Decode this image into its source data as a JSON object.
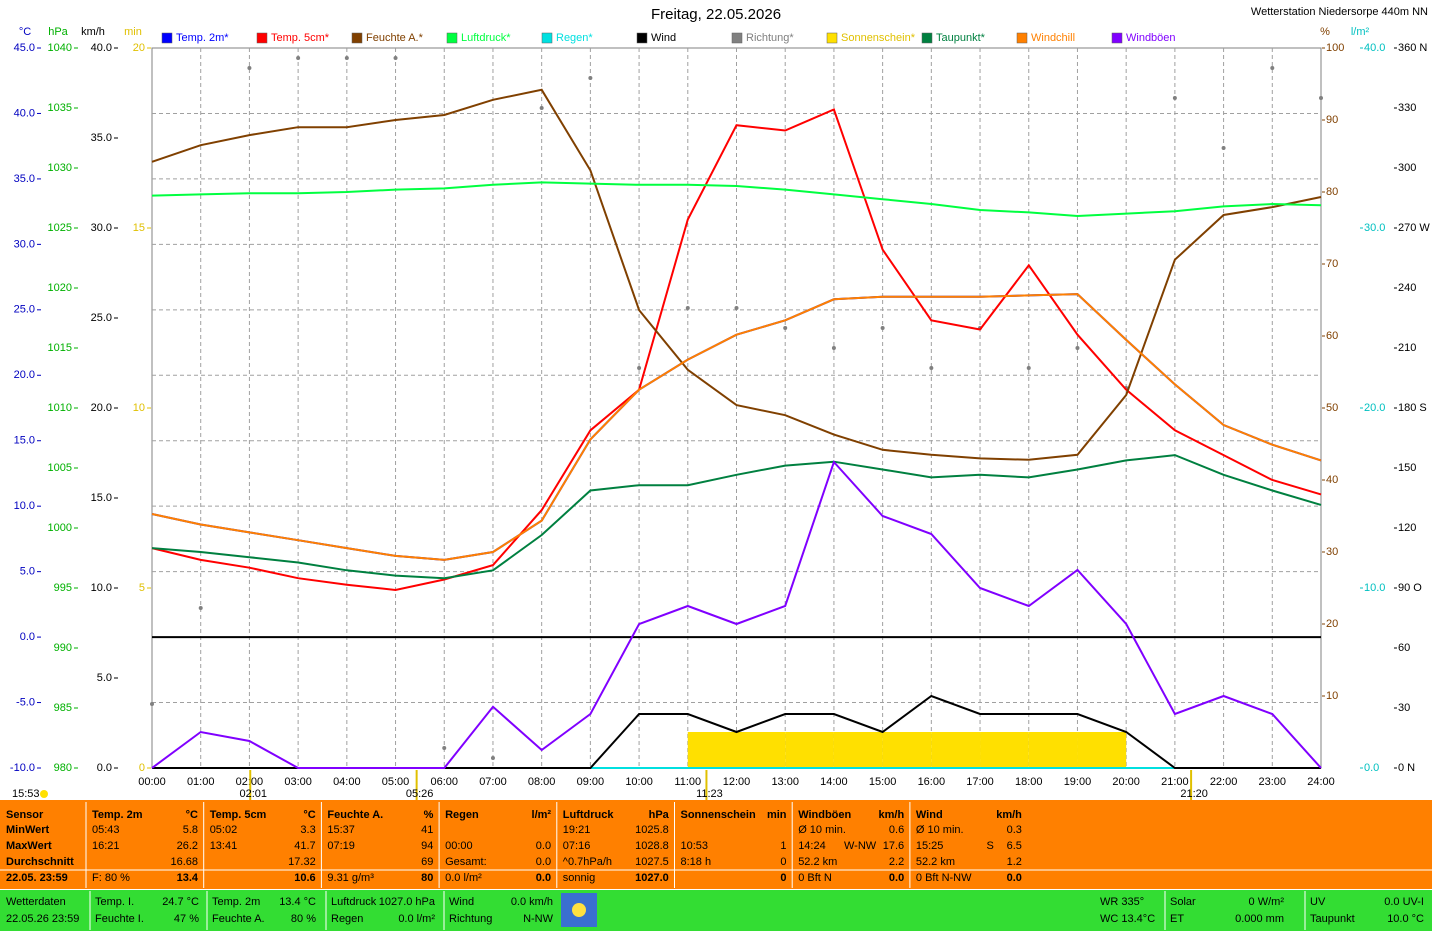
{
  "chart_data": {
    "type": "line",
    "title": "Freitag, 22.05.2026",
    "subtitle": "Wetterstation Niedersorpe 440m NN",
    "x": [
      0,
      1,
      2,
      3,
      4,
      5,
      6,
      7,
      8,
      9,
      10,
      11,
      12,
      13,
      14,
      15,
      16,
      17,
      18,
      19,
      20,
      21,
      22,
      23,
      24
    ],
    "xlim": [
      0,
      24
    ],
    "xticks": [
      {
        "value": 0,
        "label": "00:00"
      },
      {
        "value": 1,
        "label": "01:00"
      },
      {
        "value": 2,
        "label": "02:00"
      },
      {
        "value": 3,
        "label": "03:00"
      },
      {
        "value": 4,
        "label": "04:00"
      },
      {
        "value": 5,
        "label": "05:00"
      },
      {
        "value": 6,
        "label": "06:00"
      },
      {
        "value": 7,
        "label": "07:00"
      },
      {
        "value": 8,
        "label": "08:00"
      },
      {
        "value": 9,
        "label": "09:00"
      },
      {
        "value": 10,
        "label": "10:00"
      },
      {
        "value": 11,
        "label": "11:00"
      },
      {
        "value": 12,
        "label": "12:00"
      },
      {
        "value": 13,
        "label": "13:00"
      },
      {
        "value": 14,
        "label": "14:00"
      },
      {
        "value": 15,
        "label": "15:00"
      },
      {
        "value": 16,
        "label": "16:00"
      },
      {
        "value": 17,
        "label": "17:00"
      },
      {
        "value": 18,
        "label": "18:00"
      },
      {
        "value": 19,
        "label": "19:00"
      },
      {
        "value": 20,
        "label": "20:00"
      },
      {
        "value": 21,
        "label": "21:00"
      },
      {
        "value": 22,
        "label": "22:00"
      },
      {
        "value": 23,
        "label": "23:00"
      },
      {
        "value": 24,
        "label": "24:00"
      }
    ],
    "y_axes": {
      "temp": {
        "unit": "°C",
        "color": "#0000c0",
        "ylim": [
          -10,
          45
        ],
        "grid": true,
        "zero_line": true,
        "yticks": [
          {
            "value": -10,
            "label": "-10.0"
          },
          {
            "value": -5,
            "label": "-5.0"
          },
          {
            "value": 0,
            "label": "0.0"
          },
          {
            "value": 5,
            "label": "5.0"
          },
          {
            "value": 10,
            "label": "10.0"
          },
          {
            "value": 15,
            "label": "15.0"
          },
          {
            "value": 20,
            "label": "20.0"
          },
          {
            "value": 25,
            "label": "25.0"
          },
          {
            "value": 30,
            "label": "30.0"
          },
          {
            "value": 35,
            "label": "35.0"
          },
          {
            "value": 40,
            "label": "40.0"
          },
          {
            "value": 45,
            "label": "45.0"
          }
        ]
      },
      "pressure": {
        "unit": "hPa",
        "color": "#00b000",
        "ylim": [
          980,
          1040
        ],
        "yticks": [
          980,
          985,
          990,
          995,
          1000,
          1005,
          1010,
          1015,
          1020,
          1025,
          1030,
          1035,
          1040
        ]
      },
      "wind": {
        "unit": "km/h",
        "color": "#000000",
        "ylim": [
          0,
          40
        ],
        "yticks": [
          {
            "value": 0,
            "label": "0.0"
          },
          {
            "value": 5,
            "label": "5.0"
          },
          {
            "value": 10,
            "label": "10.0"
          },
          {
            "value": 15,
            "label": "15.0"
          },
          {
            "value": 20,
            "label": "20.0"
          },
          {
            "value": 25,
            "label": "25.0"
          },
          {
            "value": 30,
            "label": "30.0"
          },
          {
            "value": 35,
            "label": "35.0"
          },
          {
            "value": 40,
            "label": "40.0"
          }
        ]
      },
      "sun": {
        "unit": "min",
        "color": "#e0c000",
        "ylim": [
          0,
          20
        ],
        "yticks": [
          0,
          5,
          10,
          15,
          20
        ]
      },
      "humidity": {
        "unit": "%",
        "color": "#804000",
        "ylim": [
          0,
          100
        ],
        "yticks": [
          10,
          20,
          30,
          40,
          50,
          60,
          70,
          80,
          90,
          100
        ]
      },
      "rain": {
        "unit": "l/m²",
        "color": "#00c0c0",
        "ylim": [
          0,
          40
        ],
        "yticks": [
          {
            "value": 0,
            "label": "0.0"
          },
          {
            "value": 10,
            "label": "10.0"
          },
          {
            "value": 20,
            "label": "20.0"
          },
          {
            "value": 30,
            "label": "30.0"
          },
          {
            "value": 40,
            "label": "40.0"
          }
        ]
      },
      "direction": {
        "color": "#000000",
        "ylim": [
          0,
          360
        ],
        "yticks": [
          {
            "value": 0,
            "label": "0 N"
          },
          30,
          60,
          {
            "value": 90,
            "label": "90 O"
          },
          120,
          150,
          {
            "value": 180,
            "label": "180 S"
          },
          210,
          240,
          {
            "value": 270,
            "label": "270 W"
          },
          300,
          330,
          {
            "value": 360,
            "label": "360 N"
          }
        ]
      }
    },
    "series": [
      {
        "name": "Temp. 2m*",
        "color": "#0000ff",
        "axis": "temp",
        "style": "line",
        "values": [
          9.4,
          8.6,
          8.0,
          7.4,
          6.8,
          6.2,
          5.9,
          6.5,
          8.9,
          15.1,
          18.9,
          21.2,
          23.1,
          24.2,
          25.8,
          26.0,
          26.0,
          26.0,
          26.1,
          26.2,
          22.7,
          19.3,
          16.2,
          14.7,
          13.5
        ]
      },
      {
        "name": "Temp. 5cm*",
        "color": "#ff0000",
        "axis": "temp",
        "style": "line",
        "values": [
          6.8,
          5.9,
          5.3,
          4.5,
          4.0,
          3.6,
          4.4,
          5.5,
          9.7,
          15.8,
          18.9,
          31.9,
          39.1,
          38.7,
          40.3,
          29.6,
          24.2,
          23.5,
          28.4,
          23.1,
          18.9,
          15.8,
          13.9,
          12.0,
          10.9
        ]
      },
      {
        "name": "Feuchte A.*",
        "color": "#804000",
        "axis": "humidity",
        "style": "line",
        "values": [
          84.2,
          86.5,
          87.9,
          89.0,
          89.0,
          90.0,
          90.7,
          92.8,
          94.2,
          83.0,
          63.6,
          55.3,
          50.4,
          49.0,
          46.3,
          44.2,
          43.5,
          43.0,
          42.8,
          43.5,
          51.8,
          70.6,
          76.8,
          77.9,
          79.3
        ]
      },
      {
        "name": "Luftdruck*",
        "color": "#00ff40",
        "axis": "pressure",
        "style": "line",
        "values": [
          1027.7,
          1027.8,
          1027.9,
          1027.9,
          1028.0,
          1028.2,
          1028.3,
          1028.6,
          1028.8,
          1028.7,
          1028.6,
          1028.6,
          1028.5,
          1028.2,
          1027.8,
          1027.4,
          1027.0,
          1026.5,
          1026.3,
          1026.0,
          1026.2,
          1026.4,
          1026.8,
          1027.0,
          1026.9
        ]
      },
      {
        "name": "Regen*",
        "color": "#00e0e0",
        "axis": "rain",
        "style": "line",
        "values": [
          0,
          0,
          0,
          0,
          0,
          0,
          0,
          0,
          0,
          0,
          0,
          0,
          0,
          0,
          0,
          0,
          0,
          0,
          0,
          0,
          0,
          0,
          0,
          0,
          0
        ]
      },
      {
        "name": "Wind",
        "color": "#000000",
        "axis": "wind",
        "style": "line",
        "values": [
          0,
          0,
          0,
          0,
          0,
          0,
          0,
          0,
          0,
          0,
          3,
          3,
          2,
          3,
          3,
          2,
          4,
          3,
          3,
          3,
          2,
          0,
          0,
          0,
          0
        ]
      },
      {
        "name": "Richtung*",
        "color": "#808080",
        "axis": "direction",
        "style": "dots",
        "values": [
          32,
          80,
          350,
          355,
          355,
          355,
          10,
          5,
          330,
          345,
          200,
          230,
          230,
          220,
          210,
          220,
          200,
          220,
          200,
          210,
          190,
          335,
          310,
          350,
          335
        ]
      },
      {
        "name": "Sonnenschein*",
        "color": "#ffe000",
        "axis": "sun",
        "style": "bars",
        "values": [
          0,
          0,
          0,
          0,
          0,
          0,
          0,
          0,
          0,
          0,
          0,
          1,
          1,
          1,
          1,
          1,
          1,
          1,
          1,
          1,
          0,
          0,
          0,
          0,
          0
        ]
      },
      {
        "name": "Taupunkt*",
        "color": "#008040",
        "axis": "temp",
        "style": "line",
        "values": [
          6.8,
          6.5,
          6.1,
          5.7,
          5.1,
          4.7,
          4.5,
          5.1,
          7.8,
          11.2,
          11.6,
          11.6,
          12.4,
          13.1,
          13.4,
          12.8,
          12.2,
          12.4,
          12.2,
          12.8,
          13.5,
          13.9,
          12.4,
          11.2,
          10.1
        ]
      },
      {
        "name": "Windchill",
        "color": "#ff8000",
        "axis": "temp",
        "style": "line",
        "values": [
          9.4,
          8.6,
          8.0,
          7.4,
          6.8,
          6.2,
          5.9,
          6.5,
          8.9,
          15.1,
          18.9,
          21.2,
          23.1,
          24.2,
          25.8,
          26.0,
          26.0,
          26.0,
          26.1,
          26.2,
          22.7,
          19.3,
          16.2,
          14.7,
          13.5
        ]
      },
      {
        "name": "Windböen",
        "color": "#8000ff",
        "axis": "wind",
        "style": "line",
        "values": [
          0,
          2,
          1.5,
          0,
          0,
          0,
          0,
          3.4,
          1,
          3,
          8,
          9,
          8,
          9,
          17,
          14,
          13,
          10,
          9,
          11,
          8,
          3,
          4,
          3,
          0
        ]
      }
    ],
    "annotations": [
      {
        "x": 2.017,
        "text": "02:01"
      },
      {
        "x": 5.433,
        "text": "05:26"
      },
      {
        "x": 11.383,
        "text": "11:23"
      },
      {
        "x": 21.333,
        "text": "21:20"
      }
    ],
    "corner_note": "15:53"
  },
  "summary": {
    "row_labels": [
      "Sensor",
      "MinWert",
      "MaxWert",
      "Durchschnitt",
      "22.05. 23:59"
    ],
    "columns": [
      {
        "title": "Temp. 2m",
        "unit": "°C",
        "cells": [
          {
            "left": "05:43",
            "right": "5.8"
          },
          {
            "left": "16:21",
            "right": "26.2"
          },
          {
            "right": "16.68"
          },
          {
            "left": "F: 80 %",
            "right": "13.4"
          }
        ]
      },
      {
        "title": "Temp. 5cm",
        "unit": "°C",
        "cells": [
          {
            "left": "05:02",
            "right": "3.3"
          },
          {
            "left": "13:41",
            "right": "41.7"
          },
          {
            "right": "17.32"
          },
          {
            "right": "10.6"
          }
        ]
      },
      {
        "title": "Feuchte A.",
        "unit": "%",
        "cells": [
          {
            "left": "15:37",
            "right": "41"
          },
          {
            "left": "07:19",
            "right": "94"
          },
          {
            "right": "69"
          },
          {
            "left": "9.31 g/m³",
            "right": "80"
          }
        ]
      },
      {
        "title": "Regen",
        "unit": "l/m²",
        "cells": [
          {},
          {
            "left": "00:00",
            "right": "0.0"
          },
          {
            "left": "Gesamt:",
            "right": "0.0"
          },
          {
            "left": "0.0 l/m²",
            "right": "0.0"
          }
        ]
      },
      {
        "title": "Luftdruck",
        "unit": "hPa",
        "cells": [
          {
            "left": "19:21",
            "right": "1025.8"
          },
          {
            "left": "07:16",
            "right": "1028.8"
          },
          {
            "left": "^0.7hPa/h",
            "right": "1027.5"
          },
          {
            "left": "sonnig",
            "right": "1027.0"
          }
        ]
      },
      {
        "title": "Sonnenschein",
        "unit": "min",
        "cells": [
          {},
          {
            "left": "10:53",
            "right": "1"
          },
          {
            "left": "8:18 h",
            "right": "0"
          },
          {
            "right": "0"
          }
        ]
      },
      {
        "title": "Windböen",
        "unit": "km/h",
        "cells": [
          {
            "left": "Ø 10 min.",
            "right": "0.6"
          },
          {
            "left": "14:24",
            "mid": "W-NW",
            "right": "17.6"
          },
          {
            "left": "52.2 km",
            "right": "2.2"
          },
          {
            "left": "0 Bft N",
            "right": "0.0"
          }
        ]
      },
      {
        "title": "Wind",
        "unit": "km/h",
        "cells": [
          {
            "left": "Ø 10 min.",
            "right": "0.3"
          },
          {
            "left": "15:25",
            "mid": "S",
            "right": "6.5"
          },
          {
            "left": "52.2 km",
            "right": "1.2"
          },
          {
            "left": "0 Bft N-NW",
            "right": "0.0"
          }
        ]
      }
    ]
  },
  "status": {
    "station": {
      "label": "Wetterdaten",
      "time": "22.05.26 23:59"
    },
    "groups": [
      [
        [
          "Temp. I.",
          "24.7 °C"
        ],
        [
          "Feuchte I.",
          "47 %"
        ]
      ],
      [
        [
          "Temp. 2m",
          "13.4 °C"
        ],
        [
          "Feuchte A.",
          "80 %"
        ]
      ],
      [
        [
          "Luftdruck",
          "1027.0 hPa"
        ],
        [
          "Regen",
          "0.0 l/m²"
        ]
      ],
      [
        [
          "Wind",
          "0.0 km/h"
        ],
        [
          "Richtung",
          "N-NW"
        ]
      ]
    ],
    "extra": [
      "WR 335°",
      "WC 13.4°C"
    ],
    "right_groups": [
      [
        [
          "Solar",
          "0 W/m²"
        ],
        [
          "ET",
          "0.000 mm"
        ]
      ],
      [
        [
          "UV",
          "0.0 UV-I"
        ],
        [
          "Taupunkt",
          "10.0 °C"
        ]
      ]
    ]
  }
}
